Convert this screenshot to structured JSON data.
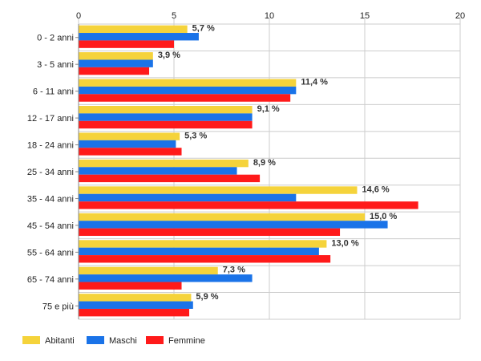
{
  "chart_data": {
    "type": "bar",
    "orientation": "horizontal",
    "categories": [
      "0 - 2 anni",
      "3 - 5 anni",
      "6 - 11 anni",
      "12 - 17 anni",
      "18 - 24 anni",
      "25 - 34 anni",
      "35 - 44 anni",
      "45 - 54 anni",
      "55 - 64 anni",
      "65 - 74 anni",
      "75 e più"
    ],
    "series": [
      {
        "name": "Abitanti",
        "color": "#f5d33b",
        "values": [
          5.7,
          3.9,
          11.4,
          9.1,
          5.3,
          8.9,
          14.6,
          15.0,
          13.0,
          7.3,
          5.9
        ]
      },
      {
        "name": "Maschi",
        "color": "#1a73e8",
        "values": [
          6.3,
          3.9,
          11.4,
          9.1,
          5.1,
          8.3,
          11.4,
          16.2,
          12.6,
          9.1,
          6.0
        ]
      },
      {
        "name": "Femmine",
        "color": "#ff1a1a",
        "values": [
          5.0,
          3.7,
          11.1,
          9.1,
          5.4,
          9.5,
          17.8,
          13.7,
          13.2,
          5.4,
          5.8
        ]
      }
    ],
    "data_labels": [
      "5,7 %",
      "3,9 %",
      "11,4 %",
      "9,1 %",
      "5,3 %",
      "8,9 %",
      "14,6 %",
      "15,0 %",
      "13,0 %",
      "7,3 %",
      "5,9 %"
    ],
    "xlim": [
      0,
      20
    ],
    "xticks": [
      0,
      5,
      10,
      15,
      20
    ],
    "xtick_labels": [
      "0",
      "5",
      "10",
      "15",
      "20"
    ],
    "grid": true,
    "legend_position": "bottom-left"
  }
}
